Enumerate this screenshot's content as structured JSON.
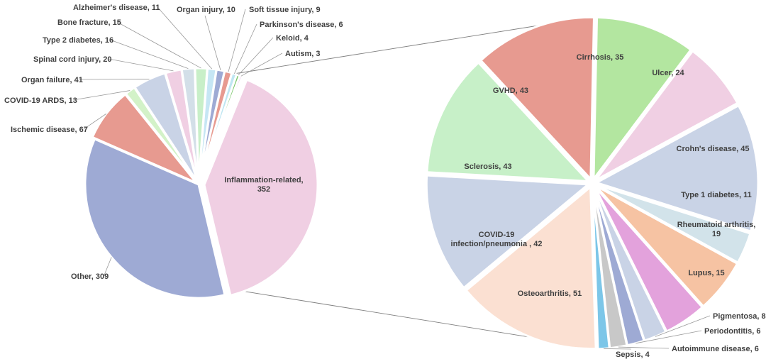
{
  "chart_data": [
    {
      "type": "pie",
      "title": "",
      "slices": [
        {
          "label": "Inflammation-related, 352",
          "name": "Inflammation-related",
          "value": 352,
          "color": "#f0cfe3"
        },
        {
          "label": "Other, 309",
          "name": "Other",
          "value": 309,
          "color": "#9eaad4"
        },
        {
          "label": "Ischemic disease, 67",
          "name": "Ischemic disease",
          "value": 67,
          "color": "#e79a90"
        },
        {
          "label": "COVID-19 ARDS, 13",
          "name": "COVID-19 ARDS",
          "value": 13,
          "color": "#d3f2c8"
        },
        {
          "label": "Organ failure, 41",
          "name": "Organ failure",
          "value": 41,
          "color": "#c9d3e6"
        },
        {
          "label": "Spinal cord injury, 20",
          "name": "Spinal cord injury",
          "value": 20,
          "color": "#f0cfe3"
        },
        {
          "label": "Type 2 diabetes, 16",
          "name": "Type 2 diabetes",
          "value": 16,
          "color": "#d3dfe8"
        },
        {
          "label": "Bone fracture, 15",
          "name": "Bone fracture",
          "value": 15,
          "color": "#c8efc8"
        },
        {
          "label": "Alzheimer's disease, 11",
          "name": "Alzheimer's disease",
          "value": 11,
          "color": "#c6e6f4"
        },
        {
          "label": "Organ injury, 10",
          "name": "Organ injury",
          "value": 10,
          "color": "#9eaad4"
        },
        {
          "label": "Soft tissue injury, 9",
          "name": "Soft tissue injury",
          "value": 9,
          "color": "#e79a90"
        },
        {
          "label": "Parkinson's disease, 6",
          "name": "Parkinson's disease",
          "value": 6,
          "color": "#bfe6f2"
        },
        {
          "label": "Keloid, 4",
          "name": "Keloid",
          "value": 4,
          "color": "#7ec86e"
        },
        {
          "label": "Autism, 3",
          "name": "Autism",
          "value": 3,
          "color": "#e2a2dc"
        }
      ]
    },
    {
      "type": "pie",
      "title": "",
      "slices": [
        {
          "label": "Crohn's disease, 45",
          "name": "Crohn's disease",
          "value": 45,
          "color": "#c9d3e6"
        },
        {
          "label": "Type 1 diabetes, 11",
          "name": "Type 1 diabetes",
          "value": 11,
          "color": "#d2e3ea"
        },
        {
          "label": "Rheumatoid arthritis, 19",
          "name": "Rheumatoid arthritis",
          "value": 19,
          "color": "#f6c3a3"
        },
        {
          "label": "Lupus, 15",
          "name": "Lupus",
          "value": 15,
          "color": "#e3a2dc"
        },
        {
          "label": "Pigmentosa, 8",
          "name": "Pigmentosa",
          "value": 8,
          "color": "#c9d3e6"
        },
        {
          "label": "Periodontitis, 6",
          "name": "Periodontitis",
          "value": 6,
          "color": "#9eaad4"
        },
        {
          "label": "Autoimmune disease, 6",
          "name": "Autoimmune disease",
          "value": 6,
          "color": "#c8c8c8"
        },
        {
          "label": "Sepsis, 4",
          "name": "Sepsis",
          "value": 4,
          "color": "#7cc6e8"
        },
        {
          "label": "Osteoarthritis, 51",
          "name": "Osteoarthritis",
          "value": 51,
          "color": "#fbe0d2"
        },
        {
          "label": "COVID-19 infection/pneumonia , 42",
          "name": "COVID-19 infection/pneumonia",
          "value": 42,
          "color": "#c9d3e6"
        },
        {
          "label": "Sclerosis, 43",
          "name": "Sclerosis",
          "value": 43,
          "color": "#c7f0c8"
        },
        {
          "label": "GVHD, 43",
          "name": "GVHD",
          "value": 43,
          "color": "#e79a90"
        },
        {
          "label": "Cirrhosis, 35",
          "name": "Cirrhosis",
          "value": 35,
          "color": "#b3e6a0"
        },
        {
          "label": "Ulcer, 24",
          "name": "Ulcer",
          "value": 24,
          "color": "#f0cfe3"
        }
      ]
    }
  ]
}
